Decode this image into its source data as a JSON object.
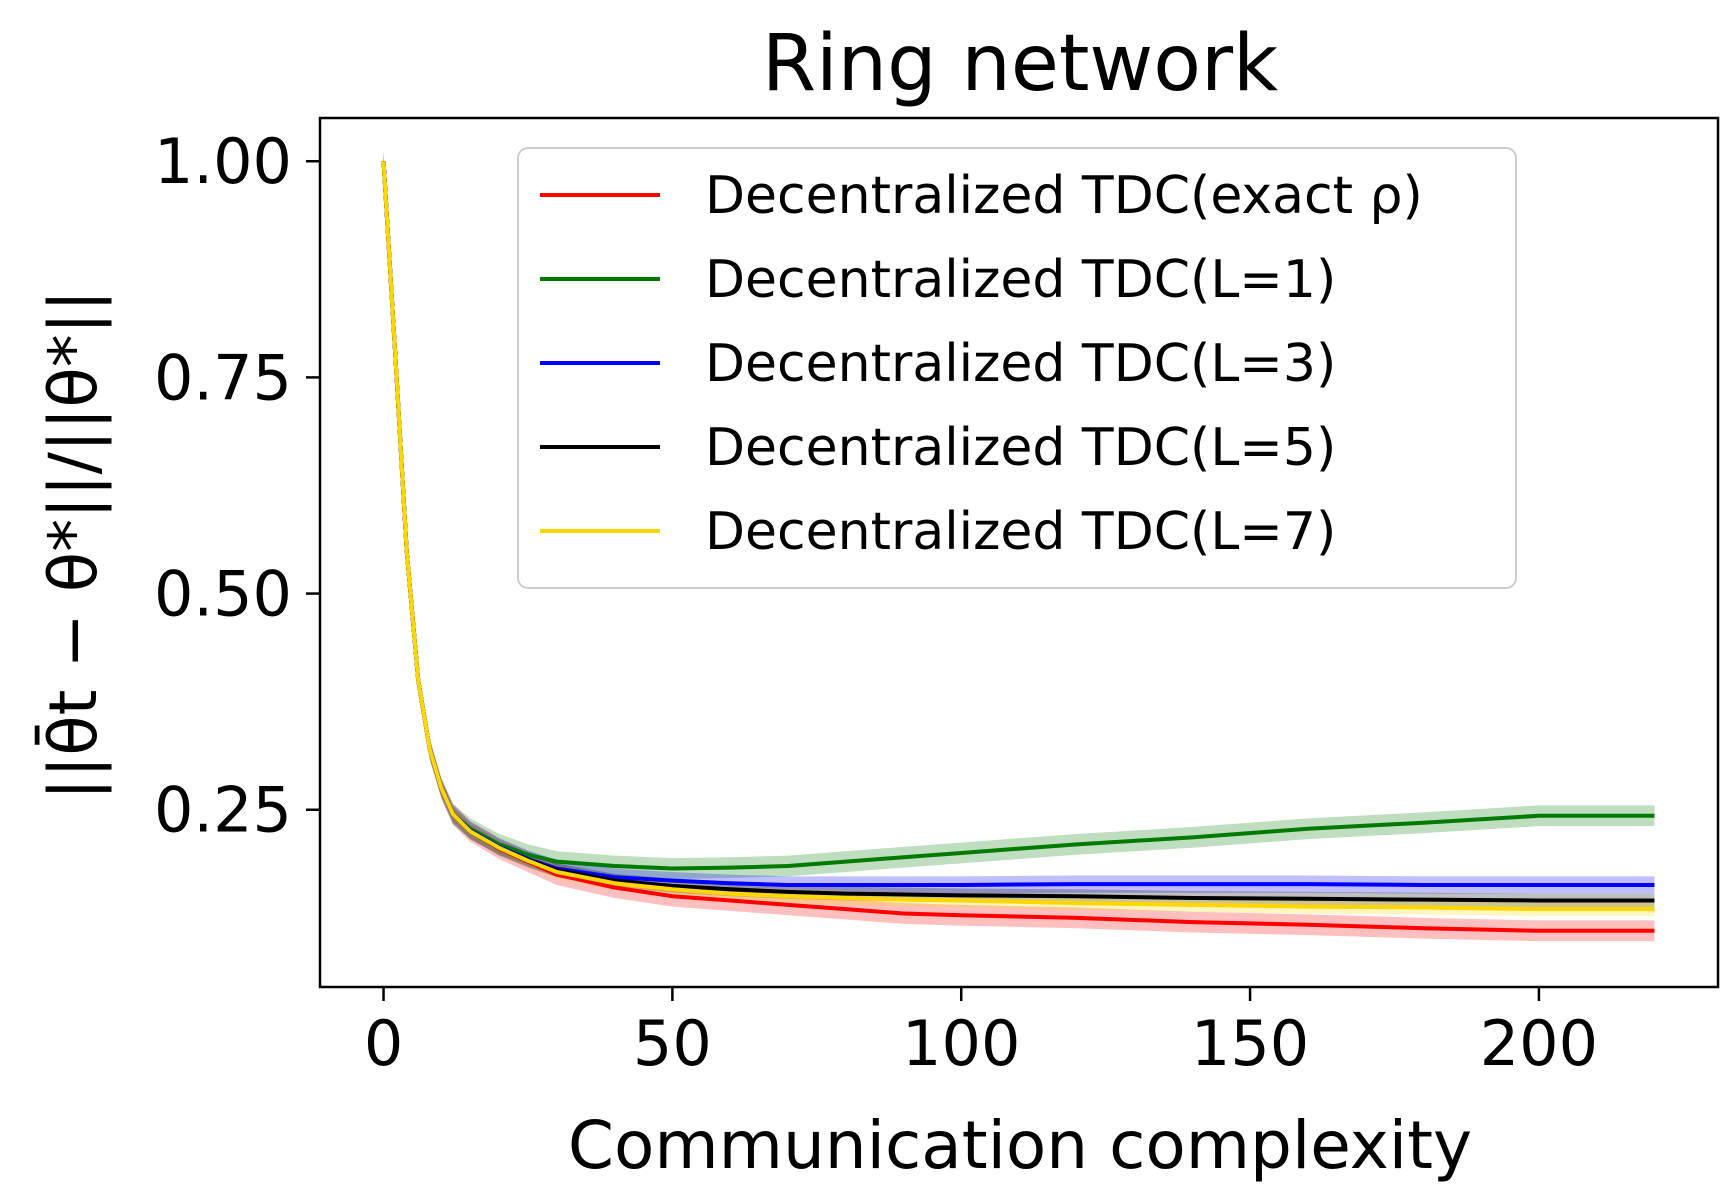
{
  "chart_data": {
    "type": "line",
    "title": "Ring network",
    "xlabel": "Communication complexity",
    "ylabel": "||θ̄t − θ*||/||θ*||",
    "xlim": [
      -11,
      231
    ],
    "ylim": [
      0.045,
      1.05
    ],
    "xticks": [
      0,
      50,
      100,
      150,
      200
    ],
    "xtick_labels": [
      "0",
      "50",
      "100",
      "150",
      "200"
    ],
    "yticks": [
      0.25,
      0.5,
      0.75,
      1.0
    ],
    "ytick_labels": [
      "0.25",
      "0.50",
      "0.75",
      "1.00"
    ],
    "grid": false,
    "legend_position": "top-right",
    "series": [
      {
        "name": "Decentralized TDC(exact ρ)",
        "color": "#ff0000",
        "band": 0.012,
        "x": [
          0,
          2,
          4,
          6,
          8,
          10,
          12,
          15,
          20,
          25,
          30,
          40,
          50,
          60,
          70,
          80,
          90,
          100,
          120,
          140,
          160,
          180,
          200,
          220
        ],
        "y": [
          1.0,
          0.78,
          0.55,
          0.4,
          0.32,
          0.275,
          0.245,
          0.225,
          0.205,
          0.19,
          0.175,
          0.16,
          0.15,
          0.145,
          0.14,
          0.135,
          0.13,
          0.128,
          0.125,
          0.12,
          0.117,
          0.113,
          0.11,
          0.11
        ]
      },
      {
        "name": "Decentralized TDC(L=1)",
        "color": "#007a00",
        "band": 0.012,
        "x": [
          0,
          2,
          4,
          6,
          8,
          10,
          12,
          15,
          20,
          25,
          30,
          40,
          50,
          60,
          70,
          80,
          90,
          100,
          120,
          140,
          160,
          180,
          200,
          220
        ],
        "y": [
          1.0,
          0.78,
          0.55,
          0.4,
          0.32,
          0.275,
          0.245,
          0.228,
          0.21,
          0.198,
          0.19,
          0.185,
          0.182,
          0.183,
          0.185,
          0.19,
          0.195,
          0.2,
          0.21,
          0.218,
          0.228,
          0.235,
          0.243,
          0.243
        ]
      },
      {
        "name": "Decentralized TDC(L=3)",
        "color": "#0000ff",
        "band": 0.01,
        "x": [
          0,
          2,
          4,
          6,
          8,
          10,
          12,
          15,
          20,
          25,
          30,
          40,
          50,
          60,
          70,
          80,
          90,
          100,
          120,
          140,
          160,
          180,
          200,
          220
        ],
        "y": [
          1.0,
          0.78,
          0.55,
          0.4,
          0.32,
          0.275,
          0.245,
          0.226,
          0.207,
          0.193,
          0.182,
          0.172,
          0.168,
          0.165,
          0.163,
          0.163,
          0.163,
          0.163,
          0.164,
          0.164,
          0.164,
          0.163,
          0.163,
          0.163
        ]
      },
      {
        "name": "Decentralized TDC(L=5)",
        "color": "#000000",
        "band": 0.008,
        "x": [
          0,
          2,
          4,
          6,
          8,
          10,
          12,
          15,
          20,
          25,
          30,
          40,
          50,
          60,
          70,
          80,
          90,
          100,
          120,
          140,
          160,
          180,
          200,
          220
        ],
        "y": [
          1.0,
          0.78,
          0.55,
          0.4,
          0.32,
          0.275,
          0.245,
          0.225,
          0.206,
          0.192,
          0.18,
          0.168,
          0.162,
          0.158,
          0.155,
          0.153,
          0.152,
          0.151,
          0.15,
          0.148,
          0.147,
          0.146,
          0.145,
          0.145
        ]
      },
      {
        "name": "Decentralized TDC(L=7)",
        "color": "#ffd700",
        "band": 0.008,
        "x": [
          0,
          2,
          4,
          6,
          8,
          10,
          12,
          15,
          20,
          25,
          30,
          40,
          50,
          60,
          70,
          80,
          90,
          100,
          120,
          140,
          160,
          180,
          200,
          220
        ],
        "y": [
          1.0,
          0.78,
          0.55,
          0.4,
          0.32,
          0.275,
          0.245,
          0.225,
          0.206,
          0.191,
          0.178,
          0.165,
          0.158,
          0.153,
          0.15,
          0.148,
          0.146,
          0.145,
          0.142,
          0.14,
          0.138,
          0.137,
          0.135,
          0.135
        ]
      }
    ]
  }
}
